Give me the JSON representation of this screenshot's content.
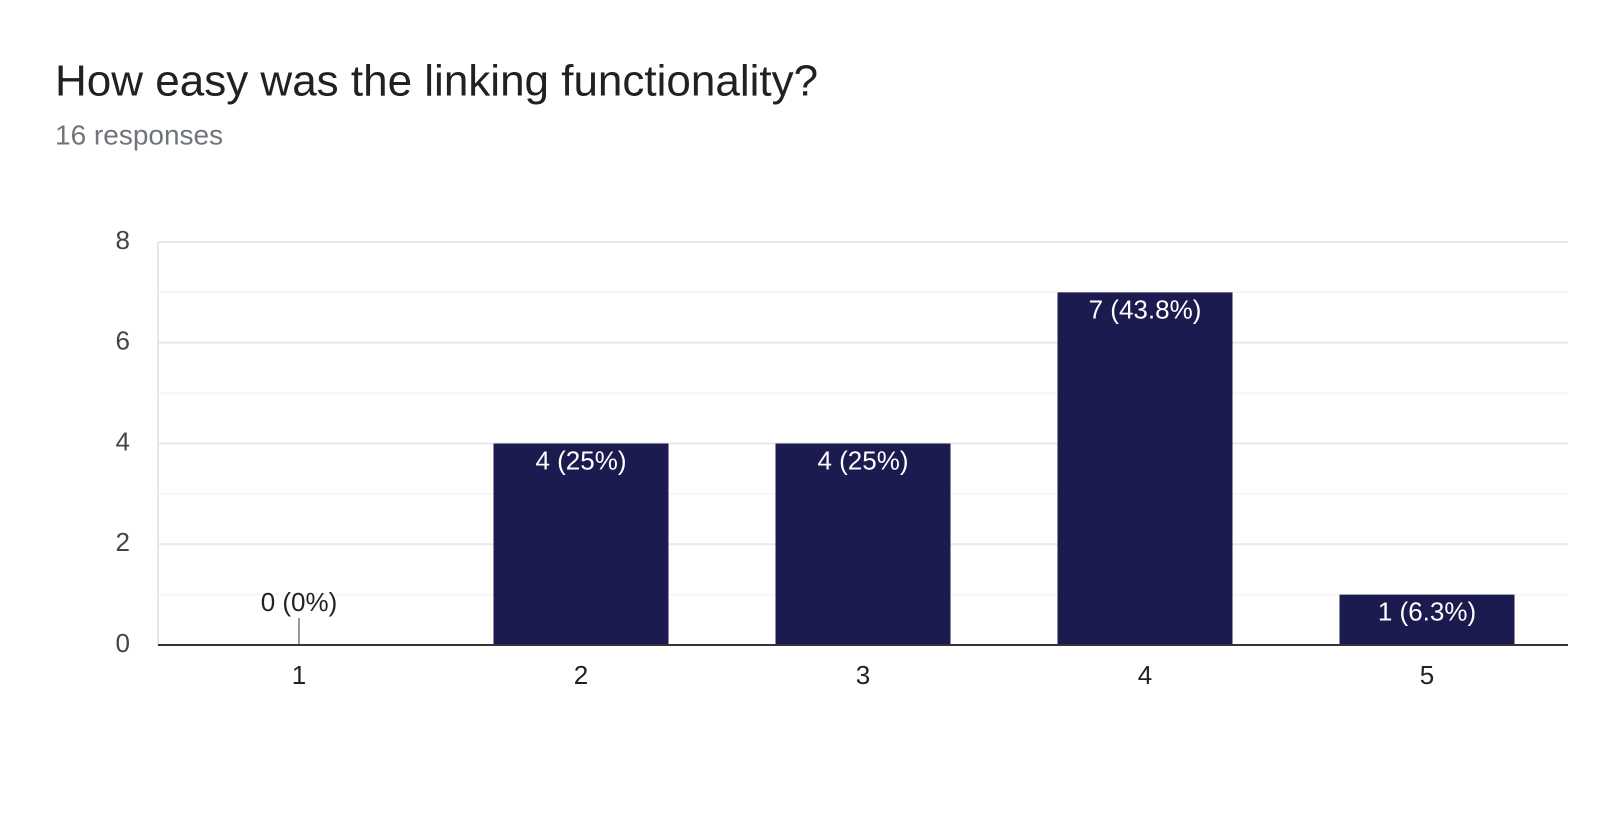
{
  "chart_data": {
    "type": "bar",
    "title": "How easy was the linking functionality?",
    "subtitle": "16 responses",
    "categories": [
      "1",
      "2",
      "3",
      "4",
      "5"
    ],
    "values": [
      0,
      4,
      4,
      7,
      1
    ],
    "value_labels": [
      "0 (0%)",
      "4 (25%)",
      "4 (25%)",
      "7 (43.8%)",
      "1 (6.3%)"
    ],
    "color": "#1c1b4f",
    "ylim": [
      0,
      8
    ],
    "yticks": [
      0,
      2,
      4,
      6,
      8
    ],
    "minor_yticks": [
      1,
      3,
      5,
      7
    ],
    "grid": true
  }
}
